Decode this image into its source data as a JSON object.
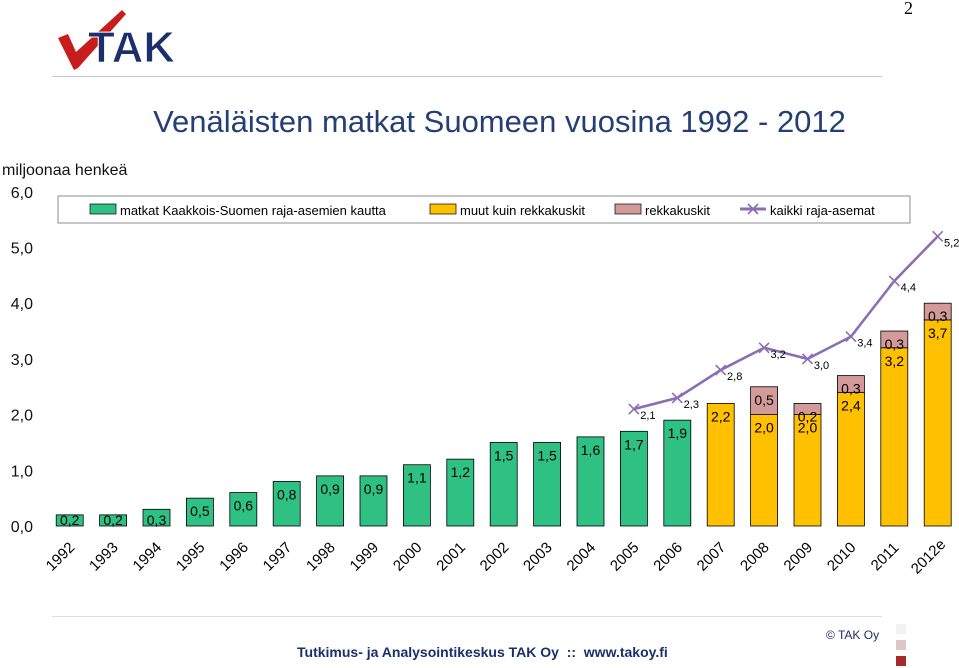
{
  "page": {
    "number": "2",
    "footer": "Tutkimus- ja Analysointikeskus TAK Oy  ::  www.takoy.fi",
    "copyright": "© TAK Oy"
  },
  "logo": {
    "text": "TAK"
  },
  "colors": {
    "kaakkois": "#2fc183",
    "muut": "#ffc000",
    "rekka": "#d39a9a",
    "line": "#8a6fb4",
    "title": "#243f74",
    "footer": "#1b2f6b",
    "squares": [
      "#f2f2f2",
      "#dcc6c6",
      "#a52a2a"
    ]
  },
  "chart_data": {
    "type": "bar",
    "title": "Venäläisten matkat Suomeen vuosina 1992 - 2012",
    "ylabel": "miljoonaa henkeä",
    "ylim": [
      0,
      6
    ],
    "yticks": [
      "0,0",
      "1,0",
      "2,0",
      "3,0",
      "4,0",
      "5,0",
      "6,0"
    ],
    "grid": false,
    "legend_position": "top",
    "categories": [
      "1992",
      "1993",
      "1994",
      "1995",
      "1996",
      "1997",
      "1998",
      "1999",
      "2000",
      "2001",
      "2002",
      "2003",
      "2004",
      "2005",
      "2006",
      "2007",
      "2008",
      "2009",
      "2010",
      "2011",
      "2012e"
    ],
    "series": [
      {
        "name": "matkat Kaakkois-Suomen raja-asemien kautta",
        "type": "bar",
        "color": "#2fc183",
        "values": [
          0.2,
          0.2,
          0.3,
          0.5,
          0.6,
          0.8,
          0.9,
          0.9,
          1.1,
          1.2,
          1.5,
          1.5,
          1.6,
          1.7,
          1.9,
          null,
          null,
          null,
          null,
          null,
          null
        ],
        "labels": [
          "0,2",
          "0,2",
          "0,3",
          "0,5",
          "0,6",
          "0,8",
          "0,9",
          "0,9",
          "1,1",
          "1,2",
          "1,5",
          "1,5",
          "1,6",
          "1,7",
          "1,9",
          "",
          "",
          "",
          "",
          "",
          ""
        ]
      },
      {
        "name": "muut kuin rekkakuskit",
        "type": "bar",
        "color": "#ffc000",
        "values": [
          null,
          null,
          null,
          null,
          null,
          null,
          null,
          null,
          null,
          null,
          null,
          null,
          null,
          null,
          null,
          2.2,
          2.0,
          2.0,
          2.4,
          3.2,
          3.7
        ],
        "labels": [
          "",
          "",
          "",
          "",
          "",
          "",
          "",
          "",
          "",
          "",
          "",
          "",
          "",
          "",
          "",
          "2,2",
          "2,0",
          "2,0",
          "2,4",
          "3,2",
          "3,7"
        ]
      },
      {
        "name": "rekkakuskit",
        "type": "bar",
        "color": "#d39a9a",
        "values": [
          null,
          null,
          null,
          null,
          null,
          null,
          null,
          null,
          null,
          null,
          null,
          null,
          null,
          null,
          null,
          null,
          0.5,
          0.2,
          0.3,
          0.3,
          0.3
        ],
        "labels": [
          "",
          "",
          "",
          "",
          "",
          "",
          "",
          "",
          "",
          "",
          "",
          "",
          "",
          "",
          "",
          "",
          "0,5",
          "0,2",
          "0,3",
          "0,3",
          "0,3"
        ]
      },
      {
        "name": "kaikki raja-asemat",
        "type": "line",
        "color": "#8a6fb4",
        "values": [
          null,
          null,
          null,
          null,
          null,
          null,
          null,
          null,
          null,
          null,
          null,
          null,
          null,
          2.1,
          2.3,
          2.8,
          3.2,
          3.0,
          3.4,
          4.4,
          5.2
        ],
        "labels": [
          "",
          "",
          "",
          "",
          "",
          "",
          "",
          "",
          "",
          "",
          "",
          "",
          "",
          "2,1",
          "2,3",
          "2,8",
          "3,2",
          "3,0",
          "3,4",
          "4,4",
          "5,2"
        ]
      }
    ]
  }
}
